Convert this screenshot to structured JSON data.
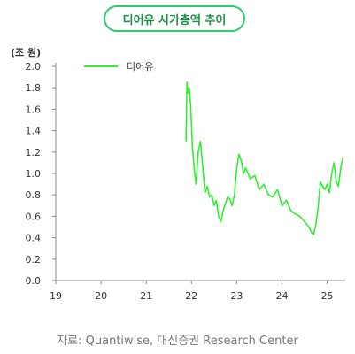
{
  "chart_data": {
    "type": "line",
    "title": "디어유 시가총액 추이",
    "ylabel": "(조 원)",
    "xlabel": "",
    "source": "자료: Quantiwise, 대신증권 Research Center",
    "ylim": [
      0,
      2.0
    ],
    "yticks": [
      0.0,
      0.2,
      0.4,
      0.6,
      0.8,
      1.0,
      1.2,
      1.4,
      1.6,
      1.8,
      2.0
    ],
    "ytick_labels": [
      "0.0",
      "0.2",
      "0.4",
      "0.6",
      "0.8",
      "1.0",
      "1.2",
      "1.4",
      "1.6",
      "1.8",
      "2.0"
    ],
    "xlim": [
      19,
      25.4
    ],
    "xticks": [
      19,
      20,
      21,
      22,
      23,
      24,
      25
    ],
    "xtick_labels": [
      "19",
      "20",
      "21",
      "22",
      "23",
      "24",
      "25"
    ],
    "grid": false,
    "legend": "top-left",
    "series": [
      {
        "name": "디어유",
        "color": "#33ee33",
        "x": [
          21.88,
          21.9,
          21.92,
          21.95,
          21.98,
          22.02,
          22.06,
          22.1,
          22.15,
          22.2,
          22.25,
          22.3,
          22.35,
          22.4,
          22.45,
          22.5,
          22.55,
          22.6,
          22.65,
          22.7,
          22.75,
          22.8,
          22.85,
          22.9,
          22.95,
          23.0,
          23.05,
          23.1,
          23.15,
          23.2,
          23.3,
          23.4,
          23.5,
          23.6,
          23.7,
          23.8,
          23.9,
          24.0,
          24.1,
          24.2,
          24.3,
          24.4,
          24.5,
          24.6,
          24.65,
          24.7,
          24.75,
          24.8,
          24.85,
          24.9,
          24.95,
          25.0,
          25.05,
          25.1,
          25.15,
          25.2,
          25.25,
          25.3,
          25.35
        ],
        "values": [
          1.3,
          1.85,
          1.75,
          1.8,
          1.65,
          1.25,
          1.05,
          0.9,
          1.2,
          1.3,
          1.05,
          0.82,
          0.88,
          0.78,
          0.8,
          0.7,
          0.75,
          0.6,
          0.55,
          0.65,
          0.72,
          0.78,
          0.76,
          0.7,
          0.8,
          1.05,
          1.18,
          1.12,
          1.0,
          1.05,
          0.95,
          0.98,
          0.85,
          0.9,
          0.8,
          0.78,
          0.85,
          0.7,
          0.75,
          0.65,
          0.62,
          0.6,
          0.55,
          0.5,
          0.45,
          0.43,
          0.52,
          0.68,
          0.92,
          0.88,
          0.85,
          0.9,
          0.82,
          1.0,
          1.1,
          0.92,
          0.88,
          1.05,
          1.15
        ]
      }
    ]
  }
}
